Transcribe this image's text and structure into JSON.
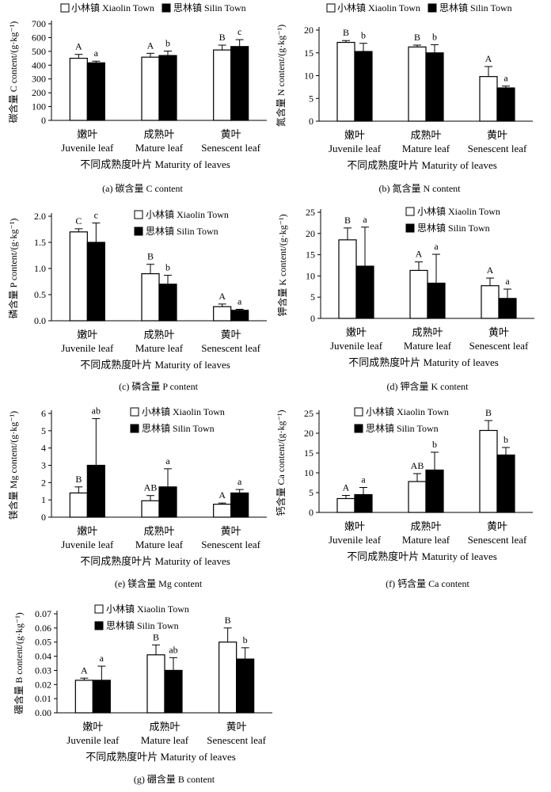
{
  "x_axis_title": "不同成熟度叶片 Maturity of leaves",
  "categories": [
    {
      "cn": "嫩叶",
      "en": "Juvenile leaf"
    },
    {
      "cn": "成熟叶",
      "en": "Mature leaf"
    },
    {
      "cn": "黄叶",
      "en": "Senescent leaf"
    }
  ],
  "legend": {
    "series1": "小林镇 Xiaolin Town",
    "series2": "思林镇 Silin Town"
  },
  "colors": {
    "series1": "#ffffff",
    "series2": "#000000",
    "axis": "#000000"
  },
  "chart_data": [
    {
      "type": "bar",
      "id": "c",
      "caption": "(a) 碳含量 C content",
      "ylabel": "碳含量 C content/(g·kg⁻¹)",
      "ylim": [
        0,
        700
      ],
      "yticks": [
        0,
        100,
        200,
        300,
        400,
        500,
        600,
        700
      ],
      "tick_labels": [
        "0",
        "100",
        "200",
        "300",
        "400",
        "500",
        "600",
        "700"
      ],
      "series": [
        {
          "name": "小林镇 Xiaolin Town",
          "values": [
            450,
            458,
            510
          ],
          "errors": [
            28,
            28,
            35
          ],
          "sig": [
            "A",
            "A",
            "B"
          ]
        },
        {
          "name": "思林镇 Silin Town",
          "values": [
            417,
            470,
            535
          ],
          "errors": [
            12,
            32,
            50
          ],
          "sig": [
            "a",
            "b",
            "c"
          ]
        }
      ]
    },
    {
      "type": "bar",
      "id": "n",
      "caption": "(b) 氮含量 N content",
      "ylabel": "氮含量 N content/(g·kg⁻¹)",
      "ylim": [
        0,
        20
      ],
      "yticks": [
        0,
        5,
        10,
        15,
        20
      ],
      "tick_labels": [
        "0",
        "5",
        "10",
        "15",
        "20"
      ],
      "series": [
        {
          "name": "小林镇 Xiaolin Town",
          "values": [
            17.3,
            16.3,
            9.8
          ],
          "errors": [
            0.4,
            0.4,
            2.2
          ],
          "sig": [
            "B",
            "B",
            "A"
          ]
        },
        {
          "name": "思林镇 Silin Town",
          "values": [
            15.3,
            15.0,
            7.3
          ],
          "errors": [
            1.8,
            1.8,
            0.4
          ],
          "sig": [
            "b",
            "b",
            "a"
          ]
        }
      ]
    },
    {
      "type": "bar",
      "id": "p",
      "caption": "(c) 磷含量 P content",
      "ylabel": "磷含量 P content/(g·kg⁻¹)",
      "ylim": [
        0,
        2.0
      ],
      "yticks": [
        0,
        0.5,
        1.0,
        1.5,
        2.0
      ],
      "tick_labels": [
        "0.0",
        "0.5",
        "1.0",
        "1.5",
        "2.0"
      ],
      "series": [
        {
          "name": "小林镇 Xiaolin Town",
          "values": [
            1.7,
            0.9,
            0.27
          ],
          "errors": [
            0.06,
            0.18,
            0.05
          ],
          "sig": [
            "C",
            "B",
            "A"
          ]
        },
        {
          "name": "思林镇 Silin Town",
          "values": [
            1.5,
            0.7,
            0.2
          ],
          "errors": [
            0.37,
            0.17,
            0.02
          ],
          "sig": [
            "c",
            "b",
            "a"
          ]
        }
      ]
    },
    {
      "type": "bar",
      "id": "k",
      "caption": "(d) 钾含量 K content",
      "ylabel": "钾含量 K content/(g·kg⁻¹)",
      "ylim": [
        0,
        25
      ],
      "yticks": [
        0,
        5,
        10,
        15,
        20,
        25
      ],
      "tick_labels": [
        "0",
        "5",
        "10",
        "15",
        "20",
        "25"
      ],
      "series": [
        {
          "name": "小林镇 Xiaolin Town",
          "values": [
            18.5,
            11.3,
            7.7
          ],
          "errors": [
            2.8,
            2.0,
            1.8
          ],
          "sig": [
            "B",
            "A",
            "A"
          ]
        },
        {
          "name": "思林镇 Silin Town",
          "values": [
            12.3,
            8.3,
            4.7
          ],
          "errors": [
            9.2,
            6.8,
            2.2
          ],
          "sig": [
            "a",
            "a",
            "a"
          ]
        }
      ]
    },
    {
      "type": "bar",
      "id": "mg",
      "caption": "(e) 镁含量 Mg content",
      "ylabel": "镁含量 Mg content/(g·kg⁻¹)",
      "ylim": [
        0,
        6
      ],
      "yticks": [
        0,
        1,
        2,
        3,
        4,
        5,
        6
      ],
      "tick_labels": [
        "0",
        "1",
        "2",
        "3",
        "4",
        "5",
        "6"
      ],
      "series": [
        {
          "name": "小林镇 Xiaolin Town",
          "values": [
            1.4,
            0.95,
            0.75
          ],
          "errors": [
            0.35,
            0.3,
            0.07
          ],
          "sig": [
            "B",
            "AB",
            "A"
          ]
        },
        {
          "name": "思林镇 Silin Town",
          "values": [
            3.0,
            1.75,
            1.4
          ],
          "errors": [
            2.7,
            1.05,
            0.2
          ],
          "sig": [
            "ab",
            "a",
            "a"
          ]
        }
      ]
    },
    {
      "type": "bar",
      "id": "ca",
      "caption": "(f) 钙含量 Ca content",
      "ylabel": "钙含量 Ca content/(g·kg⁻¹)",
      "ylim": [
        0,
        25
      ],
      "yticks": [
        0,
        5,
        10,
        15,
        20,
        25
      ],
      "tick_labels": [
        "0",
        "5",
        "10",
        "15",
        "20",
        "25"
      ],
      "series": [
        {
          "name": "小林镇 Xiaolin Town",
          "values": [
            3.5,
            7.8,
            20.7
          ],
          "errors": [
            0.8,
            2.0,
            2.5
          ],
          "sig": [
            "A",
            "AB",
            "B"
          ]
        },
        {
          "name": "思林镇 Silin Town",
          "values": [
            4.5,
            10.7,
            14.5
          ],
          "errors": [
            1.8,
            4.5,
            1.9
          ],
          "sig": [
            "a",
            "b",
            "b"
          ]
        }
      ]
    },
    {
      "type": "bar",
      "id": "b",
      "caption": "(g) 硼含量 B content",
      "ylabel": "硼含量 B content/(g·kg⁻¹)",
      "ylim": [
        0,
        0.07
      ],
      "yticks": [
        0,
        0.01,
        0.02,
        0.03,
        0.04,
        0.05,
        0.06,
        0.07
      ],
      "tick_labels": [
        "0.00",
        "0.01",
        "0.02",
        "0.03",
        "0.04",
        "0.05",
        "0.06",
        "0.07"
      ],
      "series": [
        {
          "name": "小林镇 Xiaolin Town",
          "values": [
            0.023,
            0.041,
            0.05
          ],
          "errors": [
            0.0015,
            0.007,
            0.01
          ],
          "sig": [
            "A",
            "B",
            "B"
          ]
        },
        {
          "name": "思林镇 Silin Town",
          "values": [
            0.023,
            0.03,
            0.038
          ],
          "errors": [
            0.01,
            0.009,
            0.008
          ],
          "sig": [
            "a",
            "ab",
            "b"
          ]
        }
      ]
    }
  ]
}
